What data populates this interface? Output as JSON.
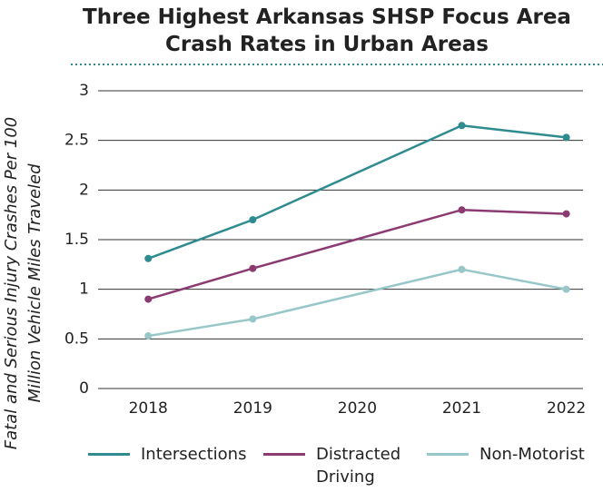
{
  "chart_data": {
    "type": "line",
    "title": [
      "Three Highest Arkansas SHSP Focus Area",
      "Crash Rates in Urban Areas"
    ],
    "ylabel": [
      "Fatal and Serious Injury Crashes Per 100",
      "Million Vehicle Miles Traveled"
    ],
    "x": [
      2018,
      2019,
      2021,
      2022
    ],
    "xlim": [
      2017.52,
      2022.16
    ],
    "xticks": [
      2018,
      2019,
      2020,
      2021,
      2022
    ],
    "ylim": [
      0,
      3
    ],
    "yticks": [
      0,
      0.5,
      1,
      1.5,
      2,
      2.5,
      3
    ],
    "grid": true,
    "legend": "bottom",
    "series": [
      {
        "name": "Intersections",
        "color": "#2e8b8f",
        "values": [
          1.31,
          1.7,
          2.65,
          2.53
        ]
      },
      {
        "name": "Distracted Driving",
        "color": "#8b3a72",
        "values": [
          0.9,
          1.21,
          1.8,
          1.76
        ]
      },
      {
        "name": "Non-Motorist",
        "color": "#97c7c9",
        "values": [
          0.53,
          0.7,
          1.2,
          1.0
        ]
      }
    ]
  }
}
